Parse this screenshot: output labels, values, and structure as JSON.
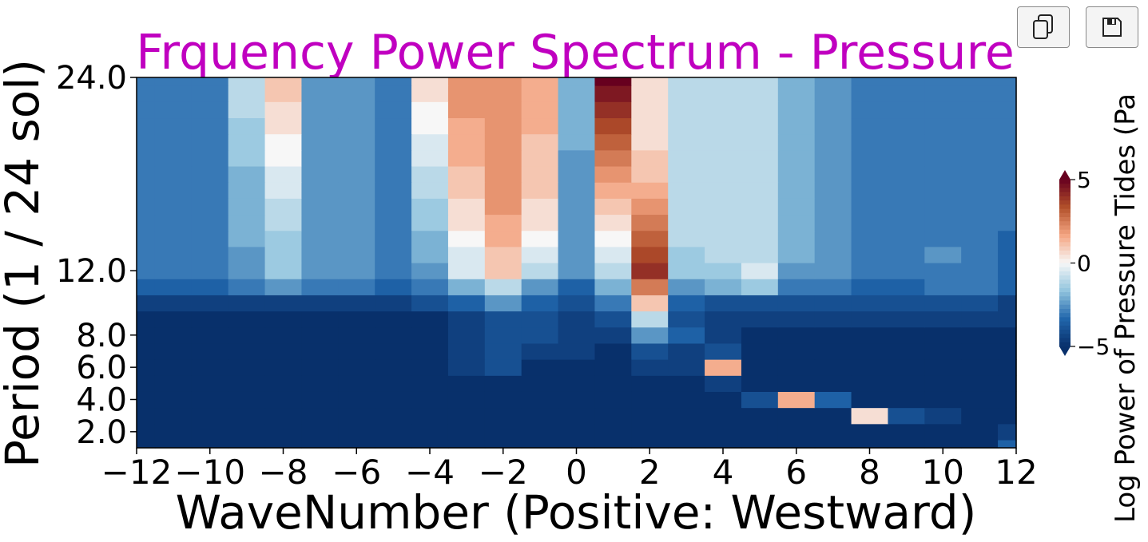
{
  "chart_data": {
    "type": "heatmap",
    "subtype": "filled-contour",
    "title": "Frquency Power Spectrum - Pressure",
    "title_color": "#c000c0",
    "xlabel": "WaveNumber (Positive: Westward)",
    "ylabel": "Period (1 / 24 sol)",
    "colorbar_label": "Log Power of Pressure Tides (Pa",
    "x_ticks": [
      -12,
      -10,
      -8,
      -6,
      -4,
      -2,
      0,
      2,
      4,
      6,
      8,
      10,
      12
    ],
    "x_tick_labels": [
      "−12",
      "−10",
      "−8",
      "−6",
      "−4",
      "−2",
      "0",
      "2",
      "4",
      "6",
      "8",
      "10",
      "12"
    ],
    "y_ticks": [
      2,
      4,
      6,
      8,
      12,
      24
    ],
    "y_tick_labels": [
      "2.0",
      "4.0",
      "6.0",
      "8.0",
      "12.0",
      "24.0"
    ],
    "xlim": [
      -12,
      12
    ],
    "ylim": [
      1,
      24
    ],
    "colorbar_ticks": [
      5,
      0,
      -5
    ],
    "colorbar_tick_labels": [
      "5",
      "0",
      "−5"
    ],
    "clim": [
      -5,
      5
    ],
    "colormap": [
      "#08306b",
      "#2166ac",
      "#92c5de",
      "#f7f7f7",
      "#f4a582",
      "#b2502a",
      "#67001f"
    ],
    "x": [
      -12,
      -11,
      -10,
      -9,
      -8,
      -7,
      -6,
      -5,
      -4,
      -3,
      -2,
      -1,
      0,
      1,
      2,
      3,
      4,
      5,
      6,
      7,
      8,
      9,
      10,
      11,
      12
    ],
    "y": [
      1,
      2,
      3,
      4,
      5,
      6,
      7,
      8,
      9,
      10,
      11,
      12,
      13,
      14,
      15,
      16,
      17,
      18,
      19,
      20,
      21,
      22,
      23,
      24
    ],
    "z": [
      [
        -5,
        -5,
        -5,
        -5,
        -5,
        -5,
        -5,
        -5,
        -5,
        -5,
        -5,
        -5,
        -5,
        -5,
        -5,
        -5,
        -5,
        -5,
        -5,
        -5,
        -5,
        -5,
        -5,
        -5,
        -3.5
      ],
      [
        -5,
        -5,
        -5,
        -5,
        -5,
        -5,
        -5,
        -5,
        -5,
        -5,
        -5,
        -5,
        -5,
        -5,
        -5,
        -5,
        -5,
        -5,
        -5,
        -5,
        -5,
        -5,
        -5,
        -5,
        -4.5
      ],
      [
        -5,
        -5,
        -5,
        -5,
        -5,
        -5,
        -5,
        -5,
        -5,
        -5,
        -5,
        -5,
        -5,
        -5,
        -5,
        -5,
        -5,
        -5,
        -5,
        -5,
        0.5,
        -4,
        -4.5,
        -5,
        -5
      ],
      [
        -5,
        -5,
        -5,
        -5,
        -5,
        -5,
        -5,
        -5,
        -5,
        -5,
        -5,
        -5,
        -5,
        -5,
        -5,
        -5,
        -5,
        -4,
        1.5,
        -3.5,
        -5,
        -5,
        -5,
        -5,
        -5
      ],
      [
        -5,
        -5,
        -5,
        -5,
        -5,
        -5,
        -5,
        -5,
        -5,
        -5,
        -5,
        -5,
        -5,
        -5,
        -5,
        -5,
        -4.5,
        -5,
        -5,
        -5,
        -5,
        -5,
        -5,
        -5,
        -5
      ],
      [
        -5,
        -5,
        -5,
        -5,
        -5,
        -5,
        -5,
        -5,
        -5,
        -4.5,
        -4,
        -5,
        -5,
        -5,
        -4.5,
        -4.5,
        1.5,
        -5,
        -5,
        -5,
        -5,
        -5,
        -5,
        -5,
        -5
      ],
      [
        -5,
        -5,
        -5,
        -5,
        -5,
        -5,
        -5,
        -5,
        -5,
        -4.5,
        -4,
        -4.5,
        -4.5,
        -5,
        -4,
        -4.5,
        -4,
        -5,
        -5,
        -5,
        -5,
        -5,
        -5,
        -5,
        -5
      ],
      [
        -5,
        -5,
        -5,
        -5,
        -5,
        -5,
        -5,
        -5,
        -5,
        -4.5,
        -4,
        -4,
        -4.5,
        -4.5,
        -2.5,
        -3.5,
        -4.5,
        -5,
        -5,
        -5,
        -5,
        -5,
        -5,
        -5,
        -5
      ],
      [
        -5,
        -5,
        -5,
        -5,
        -5,
        -5,
        -5,
        -5,
        -5,
        -4.5,
        -4,
        -4,
        -4.5,
        -4,
        -1,
        -4,
        -4.5,
        -4.5,
        -4.5,
        -4.5,
        -4.5,
        -4.5,
        -4.5,
        -4.5,
        -4.5
      ],
      [
        -4.5,
        -4.5,
        -4.5,
        -4.5,
        -4.5,
        -4.5,
        -4.5,
        -4.5,
        -4,
        -3.5,
        -2.5,
        -3.5,
        -4,
        -3,
        1,
        -3.5,
        -4,
        -4,
        -4,
        -4,
        -4,
        -4,
        -4,
        -4,
        -4.5
      ],
      [
        -3.5,
        -3.5,
        -3.5,
        -3,
        -2.5,
        -3,
        -3,
        -3.5,
        -3,
        -2,
        -1,
        -2.5,
        -3.5,
        -2,
        2.5,
        -2.5,
        -2,
        -1.5,
        -3,
        -3,
        -3.5,
        -3.5,
        -3,
        -3,
        -3.5
      ],
      [
        -3,
        -3,
        -3,
        -2.5,
        -1.5,
        -2.5,
        -2.5,
        -3,
        -2.5,
        -0.5,
        1,
        -1,
        -2.5,
        -1,
        4,
        -1.5,
        -1.5,
        -0.5,
        -2.5,
        -2.5,
        -3,
        -3,
        -3,
        -3,
        -3.5
      ],
      [
        -3,
        -3,
        -3,
        -2.5,
        -1.5,
        -2.5,
        -2.5,
        -3,
        -2,
        -0.5,
        1,
        -0.5,
        -2.5,
        -0.5,
        3.5,
        -1.5,
        -1,
        -1,
        -2,
        -2.5,
        -3,
        -3,
        -2.5,
        -3,
        -3.5
      ],
      [
        -3,
        -3,
        -3,
        -2,
        -1.5,
        -2.5,
        -2.5,
        -3,
        -2,
        0,
        1.5,
        0,
        -2.5,
        0,
        3,
        -1,
        -1,
        -1,
        -2,
        -2.5,
        -3,
        -3,
        -3,
        -3,
        -3.5
      ],
      [
        -3,
        -3,
        -3,
        -2,
        -1,
        -2.5,
        -2.5,
        -3,
        -1.5,
        0.5,
        1.5,
        0.5,
        -2.5,
        0.5,
        2.5,
        -1,
        -1,
        -1,
        -2,
        -2.5,
        -3,
        -3,
        -3,
        -3,
        -3
      ],
      [
        -3,
        -3,
        -3,
        -2,
        -1,
        -2.5,
        -2.5,
        -3,
        -1.5,
        0.5,
        2,
        0.5,
        -2.5,
        1,
        2,
        -1,
        -1,
        -1,
        -2,
        -2.5,
        -3,
        -3,
        -3,
        -3,
        -3
      ],
      [
        -3,
        -3,
        -3,
        -2,
        -0.5,
        -2.5,
        -2.5,
        -3,
        -1,
        1,
        2,
        1,
        -2.5,
        1.5,
        1.5,
        -1,
        -1,
        -1,
        -2,
        -2.5,
        -3,
        -3,
        -3,
        -3,
        -3
      ],
      [
        -3,
        -3,
        -3,
        -2,
        -0.5,
        -2.5,
        -2.5,
        -3,
        -1,
        1,
        2,
        1,
        -2.5,
        2,
        1,
        -1,
        -1,
        -1,
        -2,
        -2.5,
        -3,
        -3,
        -3,
        -3,
        -3
      ],
      [
        -3,
        -3,
        -3,
        -1.5,
        0,
        -2.5,
        -2.5,
        -3,
        -0.5,
        1.5,
        2,
        1,
        -2.5,
        2.5,
        1,
        -1,
        -1,
        -1,
        -2,
        -2.5,
        -3,
        -3,
        -3,
        -3,
        -3
      ],
      [
        -3,
        -3,
        -3,
        -1.5,
        0,
        -2.5,
        -2.5,
        -3,
        -0.5,
        1.5,
        2,
        1,
        -2,
        3,
        0.5,
        -1,
        -1,
        -1,
        -2,
        -2.5,
        -3,
        -3,
        -3,
        -3,
        -3
      ],
      [
        -3,
        -3,
        -3,
        -1.5,
        0.5,
        -2.5,
        -2.5,
        -3,
        0,
        1.5,
        2,
        1.5,
        -2,
        3.5,
        0.5,
        -1,
        -1,
        -1,
        -2,
        -2.5,
        -3,
        -3,
        -3,
        -3,
        -3
      ],
      [
        -3,
        -3,
        -3,
        -1,
        0.5,
        -2.5,
        -2.5,
        -3,
        0,
        2,
        2,
        1.5,
        -2,
        4,
        0.5,
        -1,
        -1,
        -1,
        -2,
        -2.5,
        -3,
        -3,
        -3,
        -3,
        -3
      ],
      [
        -3,
        -3,
        -3,
        -1,
        1,
        -2.5,
        -2.5,
        -3,
        0.5,
        2,
        2,
        1.5,
        -2,
        4.5,
        0.5,
        -1,
        -1,
        -1,
        -2,
        -2.5,
        -3,
        -3,
        -3,
        -3,
        -3
      ],
      [
        -3,
        -3,
        -3,
        -1,
        1,
        -2.5,
        -2.5,
        -3,
        0.5,
        2,
        2,
        1.5,
        -2,
        5,
        0.5,
        -1,
        -1,
        -1,
        -2,
        -2.5,
        -3,
        -3,
        -3,
        -3,
        -3
      ]
    ]
  },
  "toolbar": {
    "copy_icon": "copy-icon",
    "save_icon": "save-icon"
  }
}
